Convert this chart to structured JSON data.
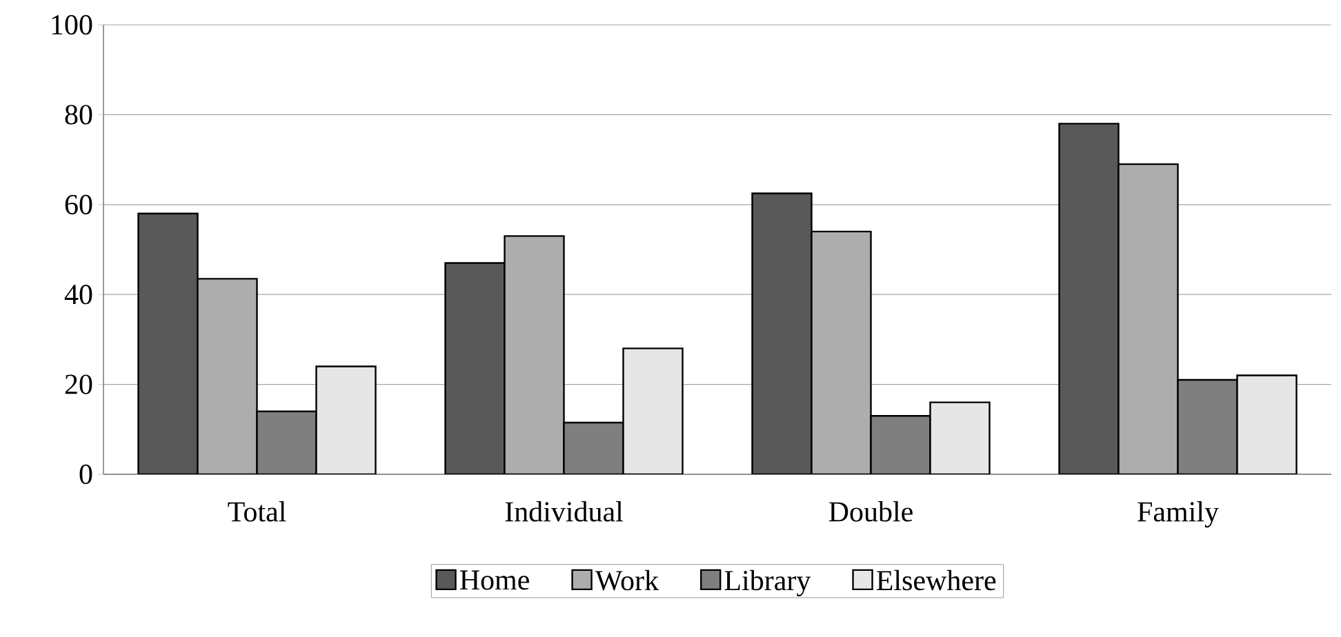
{
  "chart_data": {
    "type": "bar",
    "categories": [
      "Total",
      "Individual",
      "Double",
      "Family"
    ],
    "series": [
      {
        "name": "Home",
        "color": "#595959",
        "values": [
          58,
          47,
          62.5,
          78
        ]
      },
      {
        "name": "Work",
        "color": "#adadad",
        "values": [
          43.5,
          53,
          54,
          69
        ]
      },
      {
        "name": "Library",
        "color": "#7f7f7f",
        "values": [
          14,
          11.5,
          13,
          21
        ]
      },
      {
        "name": "Elsewhere",
        "color": "#e6e6e6",
        "values": [
          24,
          28,
          16,
          22
        ]
      }
    ],
    "ylim": [
      0,
      100
    ],
    "yticks": [
      0,
      20,
      40,
      60,
      80,
      100
    ],
    "grid": "y",
    "legend": "bottom"
  }
}
